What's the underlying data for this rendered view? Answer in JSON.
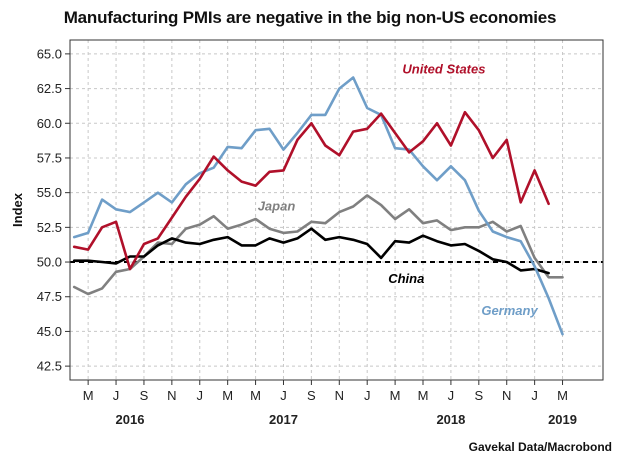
{
  "chart_data": {
    "type": "line",
    "title": "Manufacturing PMIs are negative in the big non-US economies",
    "source": "Gavekal Data/Macrobond",
    "ylabel": "Index",
    "ylim": [
      41.5,
      66
    ],
    "yticks": [
      "42.5",
      "45.0",
      "47.5",
      "50.0",
      "52.5",
      "55.0",
      "57.5",
      "60.0",
      "62.5",
      "65.0"
    ],
    "x_tick_labels": [
      "M",
      "J",
      "S",
      "N",
      "J",
      "M",
      "M",
      "J",
      "S",
      "N",
      "J",
      "M",
      "M",
      "J",
      "S",
      "N",
      "J",
      "M"
    ],
    "x_tick_index": [
      1,
      3,
      5,
      7,
      9,
      11,
      13,
      15,
      17,
      19,
      21,
      23,
      25,
      27,
      29,
      31,
      33,
      35
    ],
    "x_start": "2016-04",
    "x_range_index": [
      -0.3,
      37.9
    ],
    "years": [
      {
        "label": "2016",
        "index": 4
      },
      {
        "label": "2017",
        "index": 15
      },
      {
        "label": "2018",
        "index": 27
      },
      {
        "label": "2019",
        "index": 35
      }
    ],
    "reference_line": 50,
    "series": [
      {
        "name": "United States",
        "color": "#b0102a",
        "label_index": 26.5,
        "label_value": 63.6,
        "values": [
          51.1,
          50.9,
          52.5,
          52.9,
          49.5,
          51.3,
          51.7,
          53.2,
          54.7,
          56.0,
          57.6,
          56.6,
          55.8,
          55.5,
          56.5,
          56.6,
          58.8,
          60.0,
          58.4,
          57.7,
          59.4,
          59.6,
          60.7,
          59.3,
          57.9,
          58.7,
          60.0,
          58.4,
          60.8,
          59.5,
          57.5,
          58.8,
          54.3,
          56.6,
          54.2
        ]
      },
      {
        "name": "Germany",
        "color": "#6f9ec8",
        "label_index": 31.2,
        "label_value": 46.2,
        "values": [
          51.8,
          52.1,
          54.5,
          53.8,
          53.6,
          54.3,
          55.0,
          54.3,
          55.6,
          56.4,
          56.8,
          58.3,
          58.2,
          59.5,
          59.6,
          58.1,
          59.3,
          60.6,
          60.6,
          62.5,
          63.3,
          61.1,
          60.6,
          58.2,
          58.1,
          56.9,
          55.9,
          56.9,
          55.9,
          53.7,
          52.2,
          51.8,
          51.5,
          49.7,
          47.4,
          44.8
        ]
      },
      {
        "name": "Japan",
        "color": "#808080",
        "label_index": 14.5,
        "label_value": 53.7,
        "values": [
          48.2,
          47.7,
          48.1,
          49.3,
          49.5,
          50.4,
          51.4,
          51.3,
          52.4,
          52.7,
          53.3,
          52.4,
          52.7,
          53.1,
          52.4,
          52.1,
          52.2,
          52.9,
          52.8,
          53.6,
          54.0,
          54.8,
          54.1,
          53.1,
          53.8,
          52.8,
          53.0,
          52.3,
          52.5,
          52.5,
          52.9,
          52.2,
          52.6,
          50.3,
          48.9,
          48.9
        ]
      },
      {
        "name": "China",
        "color": "#000000",
        "label_index": 23.8,
        "label_value": 48.5,
        "values": [
          50.1,
          50.1,
          50.0,
          49.9,
          50.4,
          50.4,
          51.2,
          51.7,
          51.4,
          51.3,
          51.6,
          51.8,
          51.2,
          51.2,
          51.7,
          51.4,
          51.7,
          52.4,
          51.6,
          51.8,
          51.6,
          51.3,
          50.3,
          51.5,
          51.4,
          51.9,
          51.5,
          51.2,
          51.3,
          50.8,
          50.2,
          50.0,
          49.4,
          49.5,
          49.2
        ]
      }
    ]
  }
}
